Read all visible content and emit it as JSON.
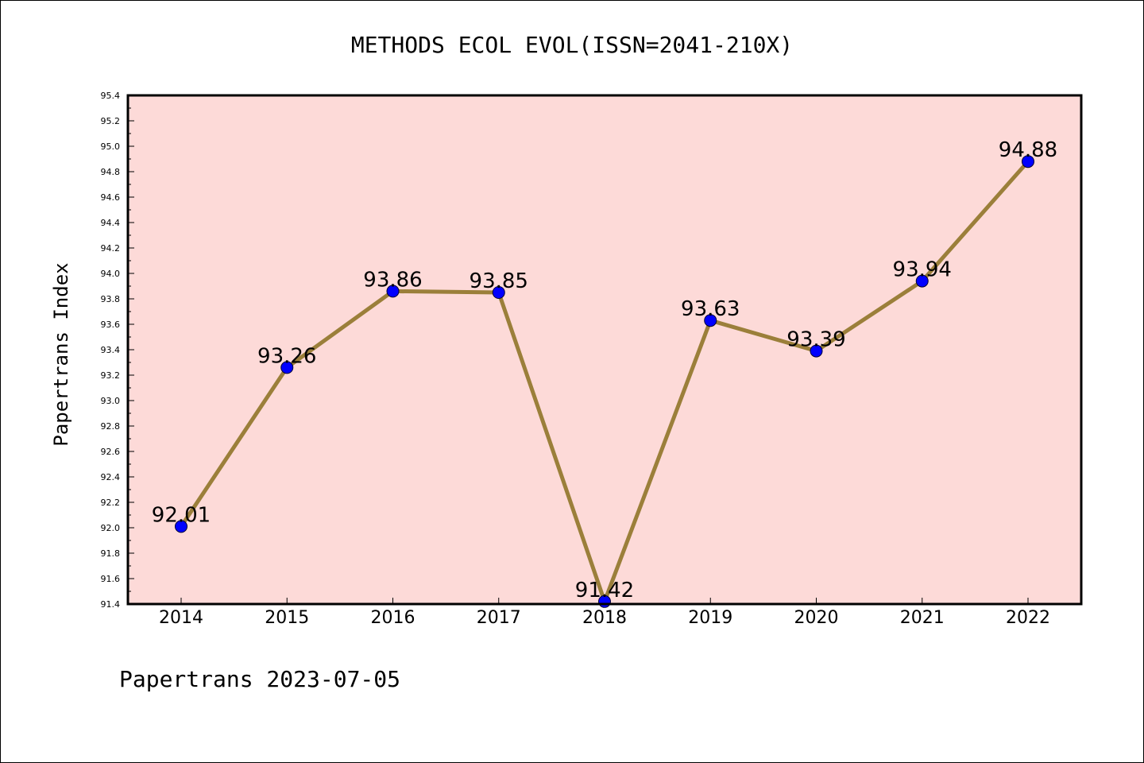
{
  "chart_data": {
    "type": "line",
    "title": "METHODS ECOL EVOL(ISSN=2041-210X)",
    "ylabel": "Papertrans Index",
    "xlabel": "",
    "x": [
      "2014",
      "2015",
      "2016",
      "2017",
      "2018",
      "2019",
      "2020",
      "2021",
      "2022"
    ],
    "values": [
      92.01,
      93.26,
      93.86,
      93.85,
      91.42,
      93.63,
      93.39,
      93.94,
      94.88
    ],
    "data_labels": [
      "92.01",
      "93.26",
      "93.86",
      "93.85",
      "91.42",
      "93.63",
      "93.39",
      "93.94",
      "94.88"
    ],
    "ylim": [
      91.4,
      95.4
    ],
    "yticks": [
      "91.4",
      "91.6",
      "91.8",
      "92.0",
      "92.2",
      "92.4",
      "92.6",
      "92.8",
      "93.0",
      "93.2",
      "93.4",
      "93.6",
      "93.8",
      "94.0",
      "94.2",
      "94.4",
      "94.6",
      "94.8",
      "95.0",
      "95.2",
      "95.4"
    ],
    "grid": false,
    "colors": {
      "plot_background": "#fddad8",
      "line": "#9b7f3a",
      "marker": "#0000ff"
    }
  },
  "footer": "Papertrans 2023-07-05"
}
